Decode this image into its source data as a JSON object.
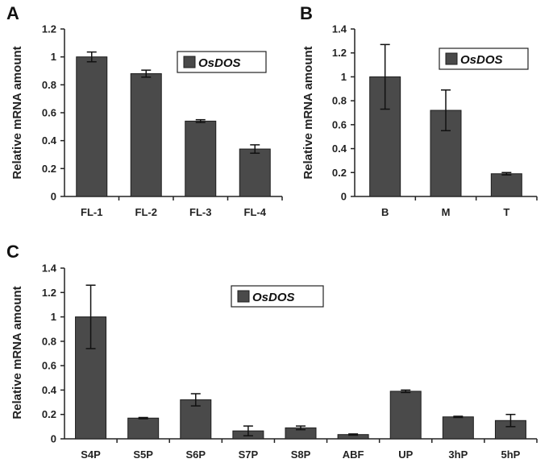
{
  "chart_data": [
    {
      "panel": "A",
      "type": "bar",
      "ylabel": "Relative mRNA amount",
      "ylim": [
        0,
        1.2
      ],
      "yticks": [
        0,
        0.2,
        0.4,
        0.6,
        0.8,
        1,
        1.2
      ],
      "ytick_labels": [
        "0",
        "0.2",
        "0.4",
        "0.6",
        "0.8",
        "1",
        "1.2"
      ],
      "categories": [
        "FL-1",
        "FL-2",
        "FL-3",
        "FL-4"
      ],
      "series": [
        {
          "name": "OsDOS",
          "values": [
            1.0,
            0.88,
            0.54,
            0.34
          ],
          "errors": [
            0.035,
            0.025,
            0.01,
            0.03
          ]
        }
      ],
      "legend": "top-right",
      "bar_color": "#4a4a4a"
    },
    {
      "panel": "B",
      "type": "bar",
      "ylabel": "Relative mRNA amount",
      "ylim": [
        0,
        1.4
      ],
      "yticks": [
        0,
        0.2,
        0.4,
        0.6,
        0.8,
        1,
        1.2,
        1.4
      ],
      "ytick_labels": [
        "0",
        "0.2",
        "0.4",
        "0.6",
        "0.8",
        "1",
        "1.2",
        "1.4"
      ],
      "categories": [
        "B",
        "M",
        "T"
      ],
      "series": [
        {
          "name": "OsDOS",
          "values": [
            1.0,
            0.72,
            0.19
          ],
          "errors": [
            0.27,
            0.17,
            0.01
          ]
        }
      ],
      "legend": "top-right",
      "bar_color": "#4a4a4a"
    },
    {
      "panel": "C",
      "type": "bar",
      "ylabel": "Relative mRNA amount",
      "ylim": [
        0,
        1.4
      ],
      "yticks": [
        0,
        0.2,
        0.4,
        0.6,
        0.8,
        1,
        1.2,
        1.4
      ],
      "ytick_labels": [
        "0",
        "0.2",
        "0.4",
        "0.6",
        "0.8",
        "1",
        "1.2",
        "1.4"
      ],
      "categories": [
        "S4P",
        "S5P",
        "S6P",
        "S7P",
        "S8P",
        "ABF",
        "UP",
        "3hP",
        "5hP"
      ],
      "series": [
        {
          "name": "OsDOS",
          "values": [
            1.0,
            0.17,
            0.32,
            0.065,
            0.09,
            0.035,
            0.39,
            0.18,
            0.15
          ],
          "errors": [
            0.26,
            0.005,
            0.05,
            0.04,
            0.015,
            0.005,
            0.01,
            0.005,
            0.05
          ]
        }
      ],
      "legend": "top-center",
      "bar_color": "#4a4a4a"
    }
  ]
}
